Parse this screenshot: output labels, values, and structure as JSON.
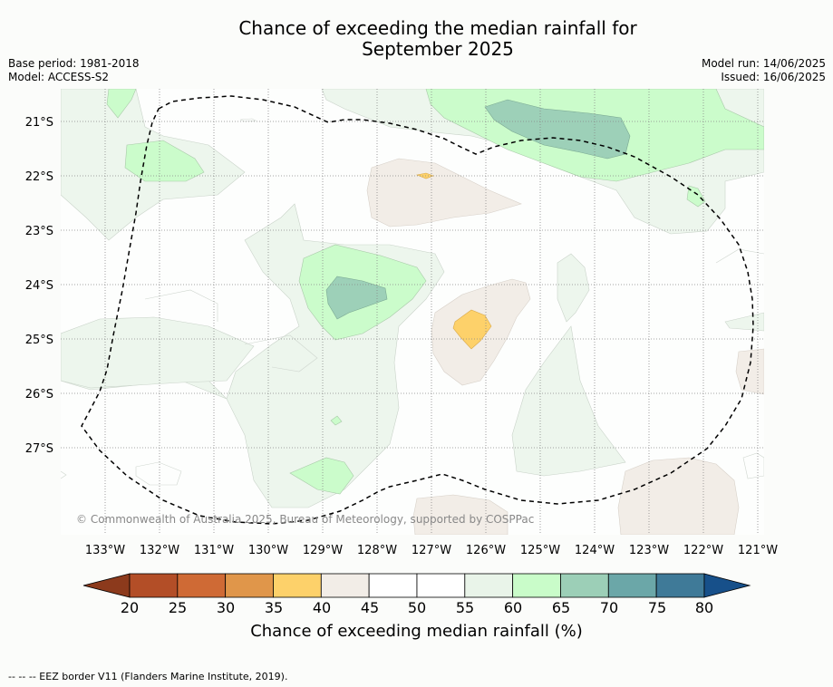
{
  "title": {
    "line1": "Chance of exceeding the median rainfall for",
    "line2": "September 2025"
  },
  "meta": {
    "base_period": "Base period: 1981-2018",
    "model": "Model: ACCESS-S2",
    "model_run": "Model run: 14/06/2025",
    "issued": "Issued: 16/06/2025"
  },
  "map": {
    "lon_labels": [
      "133°W",
      "132°W",
      "131°W",
      "130°W",
      "129°W",
      "128°W",
      "127°W",
      "126°W",
      "125°W",
      "124°W",
      "123°W",
      "122°W",
      "121°W"
    ],
    "lat_labels": [
      "21°S",
      "22°S",
      "23°S",
      "24°S",
      "25°S",
      "26°S",
      "27°S"
    ],
    "copyright": "© Commonwealth of Australia 2025, Bureau of Meteorology, supported by COSPPac",
    "eez_color": "#000000"
  },
  "colorbar": {
    "ticks": [
      "20",
      "25",
      "30",
      "35",
      "40",
      "45",
      "50",
      "55",
      "60",
      "65",
      "70",
      "75",
      "80"
    ],
    "colors": [
      "#8c3a1c",
      "#b34e27",
      "#cf6a35",
      "#e0964a",
      "#fdd16a",
      "#f2ede7",
      "#ffffff",
      "#ffffff",
      "#e9f4e9",
      "#c9fcc9",
      "#9ccfb7",
      "#6ba7a8",
      "#3f7a98",
      "#17508a"
    ],
    "label": "Chance of exceeding median rainfall (%)"
  },
  "legend_note": "--  --  -- EEZ border V11 (Flanders Marine Institute, 2019)."
}
